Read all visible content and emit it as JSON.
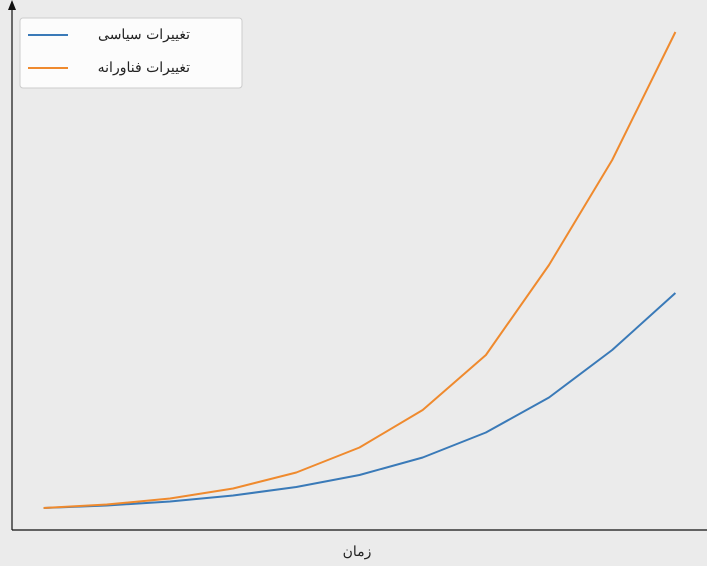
{
  "chart_data": {
    "type": "line",
    "xlabel": "زمان",
    "x": [
      0,
      1,
      2,
      3,
      4,
      5,
      6,
      7,
      8,
      9,
      10
    ],
    "xlim": [
      -0.5,
      10.5
    ],
    "ylim": [
      0,
      100
    ],
    "legend": "upper left",
    "series": [
      {
        "name": "تغییرات سیاسی",
        "color": "#3a7ab8",
        "values": [
          4.4,
          4.9,
          5.7,
          6.9,
          8.6,
          11,
          14.5,
          19.5,
          26.5,
          36,
          47.4
        ]
      },
      {
        "name": "تغییرات فناورانه",
        "color": "#ef8a2e",
        "values": [
          4.4,
          5.1,
          6.3,
          8.3,
          11.5,
          16.5,
          24,
          35,
          53,
          74,
          99.6
        ]
      }
    ]
  }
}
